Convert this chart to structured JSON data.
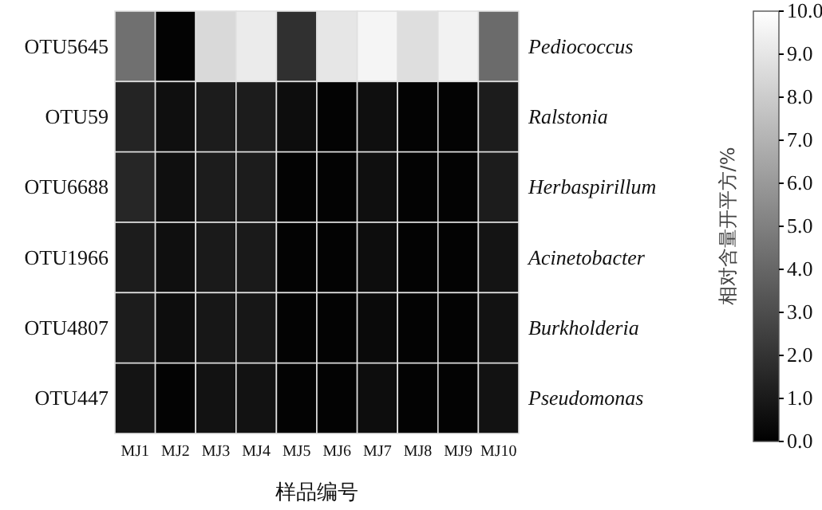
{
  "chart_data": {
    "type": "heatmap",
    "xlabel": "样品编号",
    "clabel": "相对含量开平方/%",
    "categories": [
      "MJ1",
      "MJ2",
      "MJ3",
      "MJ4",
      "MJ5",
      "MJ6",
      "MJ7",
      "MJ8",
      "MJ9",
      "MJ10"
    ],
    "y_categories": [
      "OTU5645",
      "OTU59",
      "OTU6688",
      "OTU1966",
      "OTU4807",
      "OTU447"
    ],
    "y2_categories": [
      "Pediococcus",
      "Ralstonia",
      "Herbaspirillum",
      "Acinetobacter",
      "Burkholderia",
      "Pseudomonas"
    ],
    "cells": [
      [
        4.4,
        0.1,
        8.5,
        9.2,
        1.9,
        9.0,
        9.6,
        8.7,
        9.5,
        4.2
      ],
      [
        1.4,
        0.6,
        1.1,
        1.1,
        0.5,
        0.1,
        0.6,
        0.1,
        0.1,
        1.1
      ],
      [
        1.5,
        0.6,
        1.1,
        1.1,
        0.1,
        0.1,
        0.6,
        0.1,
        0.1,
        1.1
      ],
      [
        1.1,
        0.6,
        1.0,
        1.0,
        0.1,
        0.1,
        0.5,
        0.1,
        0.1,
        0.8
      ],
      [
        1.1,
        0.5,
        0.9,
        0.9,
        0.1,
        0.1,
        0.4,
        0.1,
        0.1,
        0.7
      ],
      [
        0.8,
        0.1,
        0.7,
        0.7,
        0.1,
        0.1,
        0.5,
        0.1,
        0.1,
        0.7
      ]
    ],
    "clim": [
      0,
      10
    ],
    "cticks": [
      {
        "value": 0,
        "label": "0.0"
      },
      {
        "value": 1,
        "label": "1.0"
      },
      {
        "value": 2,
        "label": "2.0"
      },
      {
        "value": 3,
        "label": "3.0"
      },
      {
        "value": 4,
        "label": "4.0"
      },
      {
        "value": 5,
        "label": "5.0"
      },
      {
        "value": 6,
        "label": "6.0"
      },
      {
        "value": 7,
        "label": "7.0"
      },
      {
        "value": 8,
        "label": "8.0"
      },
      {
        "value": 9,
        "label": "9.0"
      },
      {
        "value": 10,
        "label": "10.0"
      }
    ]
  }
}
